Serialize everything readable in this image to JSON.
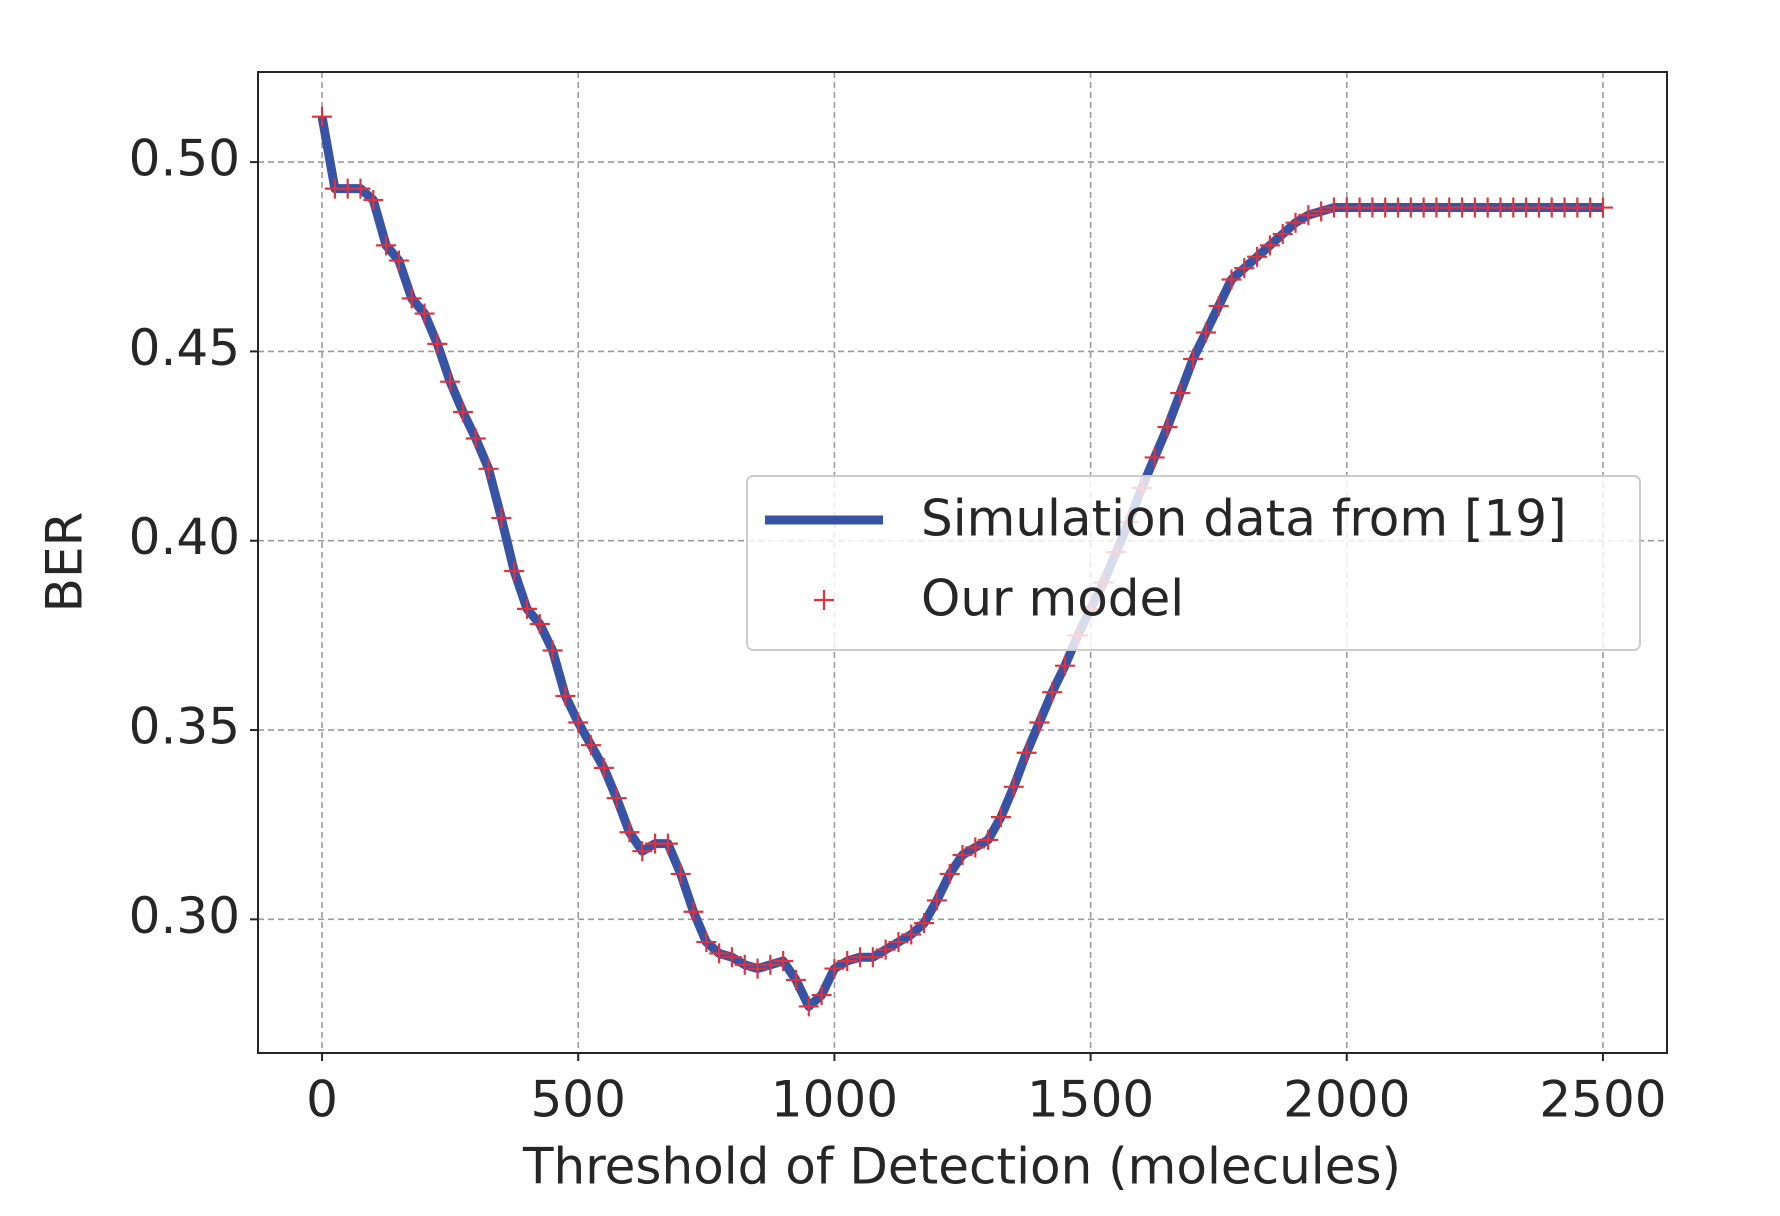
{
  "chart_data": {
    "type": "line",
    "xlabel": "Threshold of Detection (molecules)",
    "ylabel": "BER",
    "x": [
      0,
      25,
      50,
      75,
      100,
      125,
      150,
      175,
      200,
      225,
      250,
      275,
      300,
      325,
      350,
      375,
      400,
      425,
      450,
      475,
      500,
      525,
      550,
      575,
      600,
      625,
      650,
      675,
      700,
      725,
      750,
      775,
      800,
      825,
      850,
      875,
      900,
      925,
      950,
      975,
      1000,
      1025,
      1050,
      1075,
      1100,
      1125,
      1150,
      1175,
      1200,
      1225,
      1250,
      1275,
      1300,
      1325,
      1350,
      1375,
      1400,
      1425,
      1450,
      1475,
      1500,
      1525,
      1550,
      1575,
      1600,
      1625,
      1650,
      1675,
      1700,
      1725,
      1750,
      1775,
      1800,
      1825,
      1850,
      1875,
      1900,
      1925,
      1950,
      1975,
      2000,
      2025,
      2050,
      2075,
      2100,
      2125,
      2150,
      2175,
      2200,
      2225,
      2250,
      2275,
      2300,
      2325,
      2350,
      2375,
      2400,
      2425,
      2450,
      2475,
      2500
    ],
    "series": [
      {
        "name": "Simulation data from [19]",
        "color": "#3853a4",
        "style": "line",
        "values": [
          0.512,
          0.493,
          0.493,
          0.493,
          0.49,
          0.478,
          0.474,
          0.464,
          0.46,
          0.452,
          0.442,
          0.434,
          0.427,
          0.419,
          0.406,
          0.392,
          0.382,
          0.378,
          0.371,
          0.359,
          0.352,
          0.346,
          0.34,
          0.332,
          0.323,
          0.318,
          0.32,
          0.32,
          0.312,
          0.302,
          0.294,
          0.291,
          0.29,
          0.288,
          0.287,
          0.288,
          0.289,
          0.284,
          0.277,
          0.28,
          0.287,
          0.289,
          0.29,
          0.29,
          0.292,
          0.294,
          0.296,
          0.299,
          0.305,
          0.312,
          0.317,
          0.319,
          0.321,
          0.327,
          0.335,
          0.344,
          0.352,
          0.36,
          0.367,
          0.375,
          0.382,
          0.389,
          0.397,
          0.405,
          0.414,
          0.422,
          0.43,
          0.439,
          0.448,
          0.455,
          0.462,
          0.469,
          0.472,
          0.475,
          0.478,
          0.481,
          0.484,
          0.486,
          0.487,
          0.488,
          0.488,
          0.488,
          0.488,
          0.488,
          0.488,
          0.488,
          0.488,
          0.488,
          0.488,
          0.488,
          0.488,
          0.488,
          0.488,
          0.488,
          0.488,
          0.488,
          0.488,
          0.488,
          0.488,
          0.488,
          0.488
        ]
      },
      {
        "name": "Our model",
        "color": "#e0323c",
        "style": "plus",
        "values": [
          0.512,
          0.493,
          0.493,
          0.493,
          0.49,
          0.478,
          0.474,
          0.464,
          0.46,
          0.452,
          0.442,
          0.434,
          0.427,
          0.419,
          0.406,
          0.392,
          0.382,
          0.378,
          0.371,
          0.359,
          0.352,
          0.346,
          0.34,
          0.332,
          0.323,
          0.318,
          0.32,
          0.32,
          0.312,
          0.302,
          0.294,
          0.291,
          0.29,
          0.288,
          0.287,
          0.288,
          0.289,
          0.284,
          0.277,
          0.28,
          0.287,
          0.289,
          0.29,
          0.29,
          0.292,
          0.294,
          0.296,
          0.299,
          0.305,
          0.312,
          0.317,
          0.319,
          0.321,
          0.327,
          0.335,
          0.344,
          0.352,
          0.36,
          0.367,
          0.375,
          0.382,
          0.389,
          0.397,
          0.405,
          0.414,
          0.422,
          0.43,
          0.439,
          0.448,
          0.455,
          0.462,
          0.469,
          0.472,
          0.475,
          0.478,
          0.481,
          0.484,
          0.486,
          0.487,
          0.488,
          0.488,
          0.488,
          0.488,
          0.488,
          0.488,
          0.488,
          0.488,
          0.488,
          0.488,
          0.488,
          0.488,
          0.488,
          0.488,
          0.488,
          0.488,
          0.488,
          0.488,
          0.488,
          0.488,
          0.488,
          0.488
        ]
      }
    ],
    "xlim": [
      -125,
      2625
    ],
    "xticks": [
      0,
      500,
      1000,
      1500,
      2000,
      2500
    ],
    "ylim": [
      0.2647,
      0.5238
    ],
    "yticks": [
      {
        "value": 0.3,
        "label": "0.30"
      },
      {
        "value": 0.35,
        "label": "0.35"
      },
      {
        "value": 0.4,
        "label": "0.40"
      },
      {
        "value": 0.45,
        "label": "0.45"
      },
      {
        "value": 0.5,
        "label": "0.50"
      }
    ],
    "grid": true,
    "legend": "center right"
  }
}
